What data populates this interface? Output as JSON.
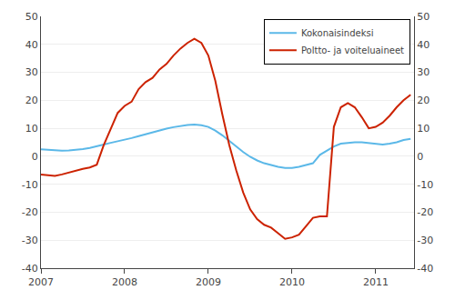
{
  "chart_data": {
    "type": "line",
    "x": [
      2007.0,
      2007.083,
      2007.167,
      2007.25,
      2007.333,
      2007.417,
      2007.5,
      2007.583,
      2007.667,
      2007.75,
      2007.833,
      2007.917,
      2008.0,
      2008.083,
      2008.167,
      2008.25,
      2008.333,
      2008.417,
      2008.5,
      2008.583,
      2008.667,
      2008.75,
      2008.833,
      2008.917,
      2009.0,
      2009.083,
      2009.167,
      2009.25,
      2009.333,
      2009.417,
      2009.5,
      2009.583,
      2009.667,
      2009.75,
      2009.833,
      2009.917,
      2010.0,
      2010.083,
      2010.167,
      2010.25,
      2010.333,
      2010.417,
      2010.5,
      2010.583,
      2010.667,
      2010.75,
      2010.833,
      2010.917,
      2011.0,
      2011.083,
      2011.167,
      2011.25,
      2011.333,
      2011.417
    ],
    "series": [
      {
        "name": "Kokonaisindeksi",
        "color": "#5BB8E8",
        "values": [
          2.5,
          2.3,
          2.2,
          2.0,
          2.1,
          2.3,
          2.6,
          3.0,
          3.5,
          4.2,
          4.8,
          5.3,
          5.8,
          6.5,
          7.2,
          7.9,
          8.6,
          9.3,
          9.9,
          10.4,
          10.9,
          11.2,
          11.3,
          11.1,
          10.5,
          9.2,
          7.5,
          5.5,
          3.5,
          1.5,
          -0.2,
          -1.5,
          -2.5,
          -3.2,
          -3.8,
          -4.2,
          -4.2,
          -3.8,
          -3.2,
          -2.5,
          0.5,
          2.0,
          3.5,
          4.5,
          4.8,
          5.0,
          5.0,
          4.8,
          4.5,
          4.2,
          4.5,
          5.0,
          5.8,
          6.2
        ]
      },
      {
        "name": "Poltto- ja voiteluaineet",
        "color": "#CC2200",
        "values": [
          -6.5,
          -6.8,
          -7.0,
          -6.5,
          -5.8,
          -5.2,
          -4.5,
          -4.0,
          -3.0,
          4.0,
          10.0,
          15.5,
          18.0,
          19.5,
          24.0,
          26.5,
          28.0,
          31.0,
          33.0,
          36.0,
          38.5,
          40.5,
          42.0,
          40.5,
          36.0,
          27.0,
          15.0,
          4.0,
          -5.0,
          -13.0,
          -19.0,
          -22.5,
          -24.5,
          -25.5,
          -27.5,
          -29.5,
          -29.0,
          -28.0,
          -25.0,
          -22.0,
          -21.5,
          -21.5,
          10.5,
          17.5,
          19.0,
          17.5,
          14.0,
          10.0,
          10.5,
          12.0,
          14.5,
          17.5,
          20.0,
          22.0
        ]
      }
    ],
    "xlim": [
      2007.0,
      2011.458
    ],
    "xticks": [
      2007,
      2008,
      2009,
      2010,
      2011
    ],
    "ylim": [
      -40,
      50
    ],
    "yticks": [
      -40,
      -30,
      -20,
      -10,
      0,
      10,
      20,
      30,
      40,
      50
    ],
    "y2lim": [
      -40,
      50
    ],
    "y2ticks": [
      -40,
      -30,
      -20,
      -10,
      0,
      10,
      20,
      30,
      40,
      50
    ],
    "grid": true,
    "legend": "upper right"
  }
}
